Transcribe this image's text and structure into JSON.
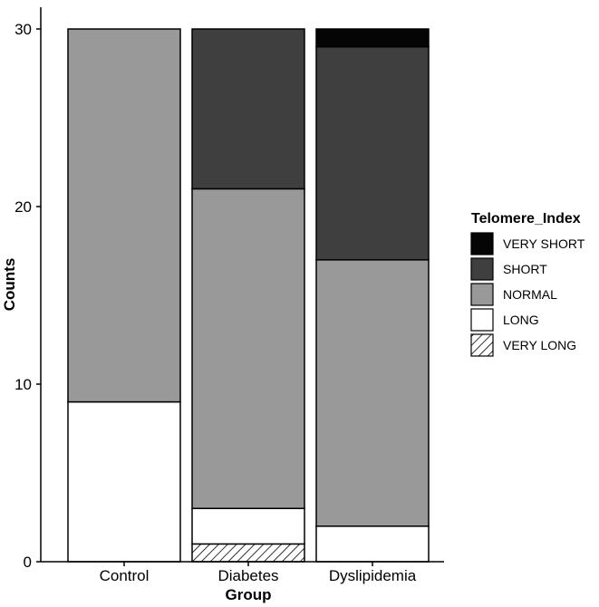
{
  "chart_data": {
    "type": "bar",
    "stacked": true,
    "xlabel": "Group",
    "ylabel": "Counts",
    "ylim": [
      0,
      30
    ],
    "yticks": [
      0,
      10,
      20,
      30
    ],
    "categories": [
      "Control",
      "Diabetes",
      "Dyslipidemia"
    ],
    "legend": {
      "title": "Telomere_Index",
      "placement": "right"
    },
    "series": [
      {
        "name": "VERY LONG",
        "color": "#ffffff",
        "pattern": "hatch",
        "values": [
          0,
          1,
          0
        ]
      },
      {
        "name": "LONG",
        "color": "#ffffff",
        "values": [
          9,
          2,
          2
        ]
      },
      {
        "name": "NORMAL",
        "color": "#999999",
        "values": [
          21,
          18,
          15
        ]
      },
      {
        "name": "SHORT",
        "color": "#3f3f3f",
        "values": [
          0,
          9,
          12
        ]
      },
      {
        "name": "VERY SHORT",
        "color": "#050505",
        "values": [
          0,
          0,
          1
        ]
      }
    ],
    "legend_order": [
      "VERY SHORT",
      "SHORT",
      "NORMAL",
      "LONG",
      "VERY LONG"
    ]
  }
}
